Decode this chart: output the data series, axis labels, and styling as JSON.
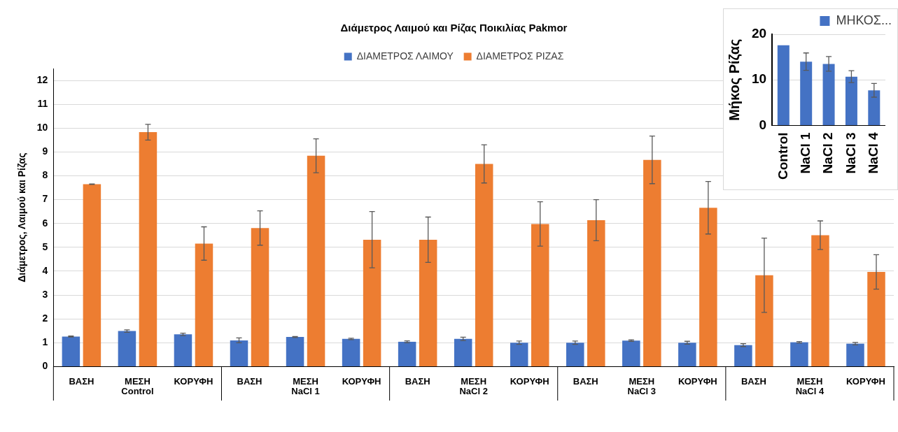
{
  "chart_data": [
    {
      "type": "bar",
      "title": "Διάμετρος Λαιμού και Ρίζας Ποικιλίας Pakmor",
      "ylabel": "Διάμετρος, Λαιμού και Ρίζας",
      "categories": [
        "ΒΑΣΗ",
        "ΜΕΣΗ",
        "ΚΟΡΥΦΗ",
        "ΒΑΣΗ",
        "ΜΕΣΗ",
        "ΚΟΡΥΦΗ",
        "ΒΑΣΗ",
        "ΜΕΣΗ",
        "ΚΟΡΥΦΗ",
        "ΒΑΣΗ",
        "ΜΕΣΗ",
        "ΚΟΡΥΦΗ",
        "ΒΑΣΗ",
        "ΜΕΣΗ",
        "ΚΟΡΥΦΗ"
      ],
      "annotations": [
        "Control",
        "NaCl 1",
        "NaCl 2",
        "NaCl 3",
        "NaCl 4"
      ],
      "series": [
        {
          "name": "ΔΙΑΜΕΤΡΟΣ ΛΑΙΜΟΥ",
          "color": "#4472c4",
          "values": [
            1.26,
            1.49,
            1.35,
            1.1,
            1.24,
            1.16,
            1.04,
            1.16,
            1.0,
            1.0,
            1.09,
            1.0,
            0.9,
            1.02,
            0.96
          ],
          "errors": [
            0.02,
            0.05,
            0.05,
            0.1,
            0.02,
            0.03,
            0.04,
            0.07,
            0.07,
            0.07,
            0.03,
            0.06,
            0.06,
            0.03,
            0.05
          ]
        },
        {
          "name": "ΔΙΑΜΕΤΡΟΣ ΡΙΖΑΣ",
          "color": "#ed7d31",
          "values": [
            7.65,
            9.83,
            5.16,
            5.81,
            8.84,
            5.32,
            5.32,
            8.5,
            5.98,
            6.14,
            8.67,
            6.66,
            3.83,
            5.51,
            3.97
          ],
          "errors": [
            0.01,
            0.33,
            0.7,
            0.72,
            0.71,
            1.18,
            0.95,
            0.8,
            0.93,
            0.86,
            1.0,
            1.1,
            1.56,
            0.6,
            0.72
          ]
        }
      ],
      "ylim": [
        0,
        12.5
      ],
      "yticks": [
        0,
        1,
        2,
        3,
        4,
        5,
        6,
        7,
        8,
        9,
        10,
        11,
        12
      ],
      "grid": "y",
      "legend": "top"
    },
    {
      "type": "bar",
      "ylabel": "Μήκος Ρίζας",
      "categories": [
        "Control",
        "NaCl 1",
        "NaCl 2",
        "NaCl 3",
        "NaCl 4"
      ],
      "series": [
        {
          "name": "ΜΗΚΟΣ...",
          "color": "#4472c4",
          "values": [
            17.6,
            14.0,
            13.5,
            10.7,
            7.7
          ],
          "errors": [
            null,
            1.9,
            1.6,
            1.3,
            1.5
          ]
        }
      ],
      "ylim": [
        0,
        20
      ],
      "yticks": [
        0,
        10,
        20
      ],
      "grid": "y",
      "legend": "top right"
    }
  ]
}
